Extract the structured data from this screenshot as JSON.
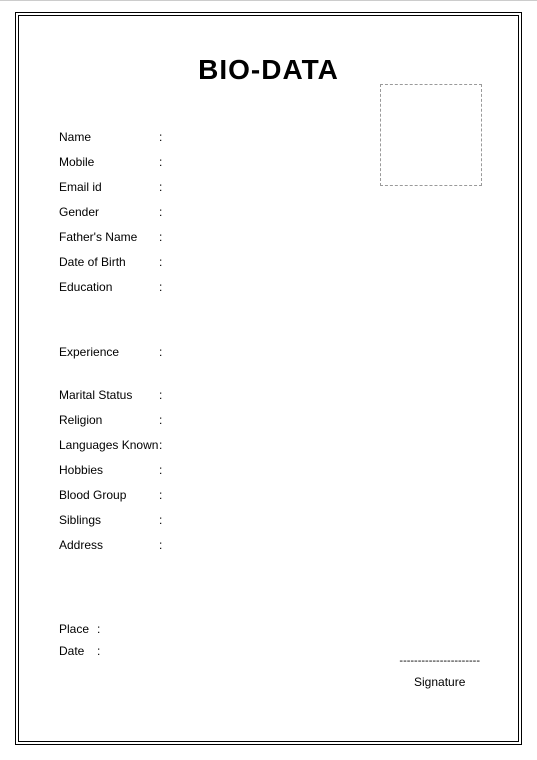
{
  "title": "BIO-DATA",
  "photo_box": {
    "border_color": "#9a9a9a",
    "border_style": "dashed"
  },
  "section1": [
    "Name",
    "Mobile",
    "Email id",
    "Gender",
    "Father's Name",
    "Date of Birth",
    "Education"
  ],
  "section2": [
    "Experience"
  ],
  "section3": [
    "Marital Status",
    "Religion",
    "Languages Known",
    "Hobbies",
    "Blood Group",
    "Siblings",
    "Address"
  ],
  "footer": {
    "place_label": "Place",
    "date_label": "Date",
    "signature_label": "Signature",
    "signature_line": "----------------------"
  },
  "colon": ":"
}
